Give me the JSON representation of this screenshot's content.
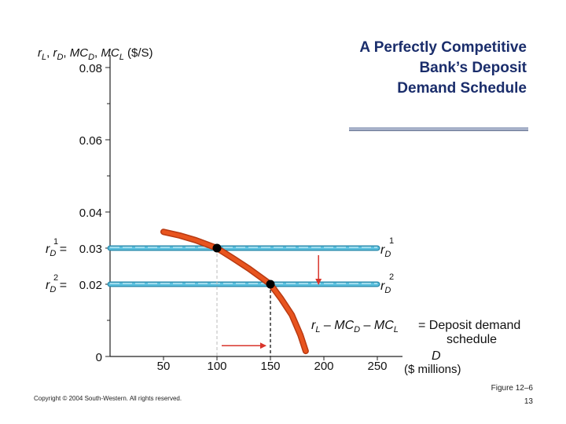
{
  "title_lines": [
    "A Perfectly Competitive",
    "Bank’s Deposit",
    "Demand Schedule"
  ],
  "footer": {
    "copyright": "Copyright © 2004 South-Western. All rights reserved.",
    "figure": "Figure 12–6",
    "page": "13"
  },
  "colors": {
    "demand_curve": "#e8541e",
    "rate_lines": "#5bc0de",
    "arrows": "#d9342b",
    "title": "#1a2d6b"
  },
  "chart_data": {
    "type": "line",
    "ylabel": "rL, rD, MCD, MCL ($/S)",
    "xlabel": "D ($ millions)",
    "xlim": [
      0,
      250
    ],
    "ylim": [
      0,
      0.08
    ],
    "x_ticks": [
      50,
      100,
      150,
      200,
      250
    ],
    "y_ticks": [
      {
        "value": 0.08,
        "label": "0.08"
      },
      {
        "value": 0.06,
        "label": "0.06"
      },
      {
        "value": 0.04,
        "label": "0.04"
      },
      {
        "value": 0.03,
        "label": "0.03",
        "prefix": "rD1 ="
      },
      {
        "value": 0.02,
        "label": "0.02",
        "prefix": "rD2 ="
      },
      {
        "value": 0,
        "label": "0"
      }
    ],
    "y_minor_ticks": [
      0.07,
      0.05,
      0.01
    ],
    "series": [
      {
        "name": "rL – MCD – MCL = Deposit demand schedule",
        "style": "curve",
        "points": [
          [
            50,
            0.0345
          ],
          [
            65,
            0.0335
          ],
          [
            80,
            0.0322
          ],
          [
            100,
            0.03
          ],
          [
            115,
            0.0272
          ],
          [
            130,
            0.0243
          ],
          [
            150,
            0.02
          ],
          [
            160,
            0.016
          ],
          [
            170,
            0.0115
          ],
          [
            178,
            0.006
          ],
          [
            183,
            0.0015
          ]
        ]
      },
      {
        "name": "rD1",
        "style": "horizontal",
        "y": 0.03,
        "x": [
          0,
          250
        ]
      },
      {
        "name": "rD2",
        "style": "horizontal",
        "y": 0.02,
        "x": [
          0,
          250
        ]
      }
    ],
    "points": [
      {
        "x": 100,
        "y": 0.03
      },
      {
        "x": 150,
        "y": 0.02
      }
    ],
    "annotations": {
      "rd1_label": "rD1",
      "rd2_label": "rD2",
      "demand_label": "rL – MCD – MCL",
      "demand_eq": "= Deposit demand",
      "demand_eq2": "schedule"
    }
  }
}
